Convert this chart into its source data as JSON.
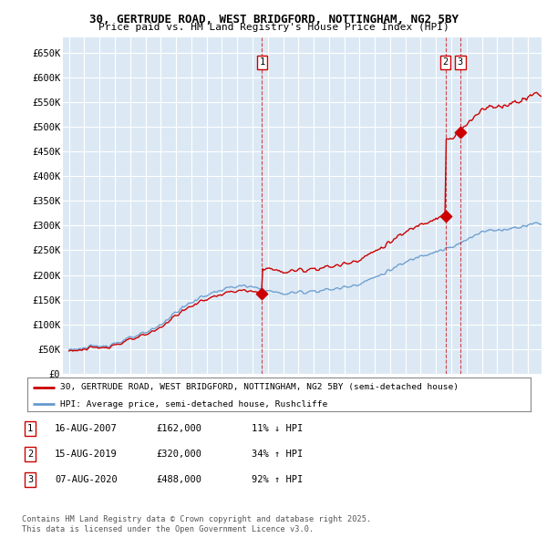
{
  "title": "30, GERTRUDE ROAD, WEST BRIDGFORD, NOTTINGHAM, NG2 5BY",
  "subtitle": "Price paid vs. HM Land Registry's House Price Index (HPI)",
  "background_color": "#dce9f5",
  "ylim": [
    0,
    680000
  ],
  "yticks": [
    0,
    50000,
    100000,
    150000,
    200000,
    250000,
    300000,
    350000,
    400000,
    450000,
    500000,
    550000,
    600000,
    650000
  ],
  "ytick_labels": [
    "£0",
    "£50K",
    "£100K",
    "£150K",
    "£200K",
    "£250K",
    "£300K",
    "£350K",
    "£400K",
    "£450K",
    "£500K",
    "£550K",
    "£600K",
    "£650K"
  ],
  "sale_year_floats": [
    2007.625,
    2019.625,
    2020.583
  ],
  "sale_prices": [
    162000,
    320000,
    488000
  ],
  "sale_labels": [
    "1",
    "2",
    "3"
  ],
  "vline_color": "#cc0000",
  "legend_line1": "30, GERTRUDE ROAD, WEST BRIDGFORD, NOTTINGHAM, NG2 5BY (semi-detached house)",
  "legend_line2": "HPI: Average price, semi-detached house, Rushcliffe",
  "table_rows": [
    {
      "num": "1",
      "date": "16-AUG-2007",
      "price": "£162,000",
      "hpi": "11% ↓ HPI"
    },
    {
      "num": "2",
      "date": "15-AUG-2019",
      "price": "£320,000",
      "hpi": "34% ↑ HPI"
    },
    {
      "num": "3",
      "date": "07-AUG-2020",
      "price": "£488,000",
      "hpi": "92% ↑ HPI"
    }
  ],
  "footer": "Contains HM Land Registry data © Crown copyright and database right 2025.\nThis data is licensed under the Open Government Licence v3.0.",
  "red_line_color": "#cc0000",
  "blue_line_color": "#6699cc",
  "hpi_anchors_years": [
    1995,
    1996,
    1997,
    1998,
    1999,
    2000,
    2001,
    2002,
    2003,
    2004,
    2005,
    2006,
    2007,
    2008,
    2009,
    2010,
    2011,
    2012,
    2013,
    2014,
    2015,
    2016,
    2017,
    2018,
    2019,
    2020,
    2021,
    2022,
    2023,
    2024,
    2025.5
  ],
  "hpi_anchors_vals": [
    50000,
    52000,
    56000,
    62000,
    72000,
    82000,
    100000,
    125000,
    145000,
    160000,
    170000,
    178000,
    175000,
    168000,
    162000,
    165000,
    168000,
    170000,
    175000,
    183000,
    195000,
    210000,
    225000,
    240000,
    248000,
    255000,
    270000,
    290000,
    290000,
    295000,
    305000
  ]
}
